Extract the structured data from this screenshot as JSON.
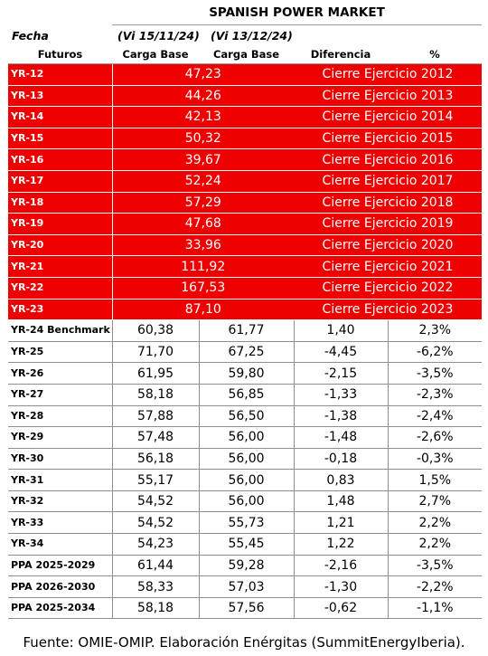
{
  "title": "SPANISH POWER MARKET",
  "header": {
    "fecha_label": "Fecha",
    "date1": "(Vi 15/11/24)",
    "date2": "(Vi 13/12/24)",
    "col_futuros": "Futuros",
    "col_carga1": "Carga Base",
    "col_carga2": "Carga Base",
    "col_diferencia": "Diferencia",
    "col_pct": "%"
  },
  "closed_rows": [
    {
      "label": "YR-12",
      "value": "47,23",
      "note": "Cierre Ejercicio 2012"
    },
    {
      "label": "YR-13",
      "value": "44,26",
      "note": "Cierre Ejercicio 2013"
    },
    {
      "label": "YR-14",
      "value": "42,13",
      "note": "Cierre Ejercicio 2014"
    },
    {
      "label": "YR-15",
      "value": "50,32",
      "note": "Cierre Ejercicio 2015"
    },
    {
      "label": "YR-16",
      "value": "39,67",
      "note": "Cierre Ejercicio 2016"
    },
    {
      "label": "YR-17",
      "value": "52,24",
      "note": "Cierre Ejercicio 2017"
    },
    {
      "label": "YR-18",
      "value": "57,29",
      "note": "Cierre Ejercicio 2018"
    },
    {
      "label": "YR-19",
      "value": "47,68",
      "note": "Cierre Ejercicio 2019"
    },
    {
      "label": "YR-20",
      "value": "33,96",
      "note": "Cierre Ejercicio 2020"
    },
    {
      "label": "YR-21",
      "value": "111,92",
      "note": "Cierre Ejercicio 2021"
    },
    {
      "label": "YR-22",
      "value": "167,53",
      "note": "Cierre Ejercicio 2022"
    },
    {
      "label": "YR-23",
      "value": "87,10",
      "note": "Cierre Ejercicio 2023"
    }
  ],
  "open_rows": [
    {
      "label": "YR-24 Benchmark",
      "v1": "60,38",
      "v2": "61,77",
      "diff": "1,40",
      "pct": "2,3%"
    },
    {
      "label": "YR-25",
      "v1": "71,70",
      "v2": "67,25",
      "diff": "-4,45",
      "pct": "-6,2%"
    },
    {
      "label": "YR-26",
      "v1": "61,95",
      "v2": "59,80",
      "diff": "-2,15",
      "pct": "-3,5%"
    },
    {
      "label": "YR-27",
      "v1": "58,18",
      "v2": "56,85",
      "diff": "-1,33",
      "pct": "-2,3%"
    },
    {
      "label": "YR-28",
      "v1": "57,88",
      "v2": "56,50",
      "diff": "-1,38",
      "pct": "-2,4%"
    },
    {
      "label": "YR-29",
      "v1": "57,48",
      "v2": "56,00",
      "diff": "-1,48",
      "pct": "-2,6%"
    },
    {
      "label": "YR-30",
      "v1": "56,18",
      "v2": "56,00",
      "diff": "-0,18",
      "pct": "-0,3%"
    },
    {
      "label": "YR-31",
      "v1": "55,17",
      "v2": "56,00",
      "diff": "0,83",
      "pct": "1,5%"
    },
    {
      "label": "YR-32",
      "v1": "54,52",
      "v2": "56,00",
      "diff": "1,48",
      "pct": "2,7%"
    },
    {
      "label": "YR-33",
      "v1": "54,52",
      "v2": "55,73",
      "diff": "1,21",
      "pct": "2,2%"
    },
    {
      "label": "YR-34",
      "v1": "54,23",
      "v2": "55,45",
      "diff": "1,22",
      "pct": "2,2%"
    },
    {
      "label": "PPA 2025-2029",
      "v1": "61,44",
      "v2": "59,28",
      "diff": "-2,16",
      "pct": "-3,5%"
    },
    {
      "label": "PPA 2026-2030",
      "v1": "58,33",
      "v2": "57,03",
      "diff": "-1,30",
      "pct": "-2,2%"
    },
    {
      "label": "PPA 2025-2034",
      "v1": "58,18",
      "v2": "57,56",
      "diff": "-0,62",
      "pct": "-1,1%"
    }
  ],
  "footer": "Fuente: OMIE-OMIP. Elaboración Enérgitas (SummitEnergyIberia).",
  "colors": {
    "closed_row_bg": "#ef0000",
    "closed_row_text": "#ffffff"
  }
}
